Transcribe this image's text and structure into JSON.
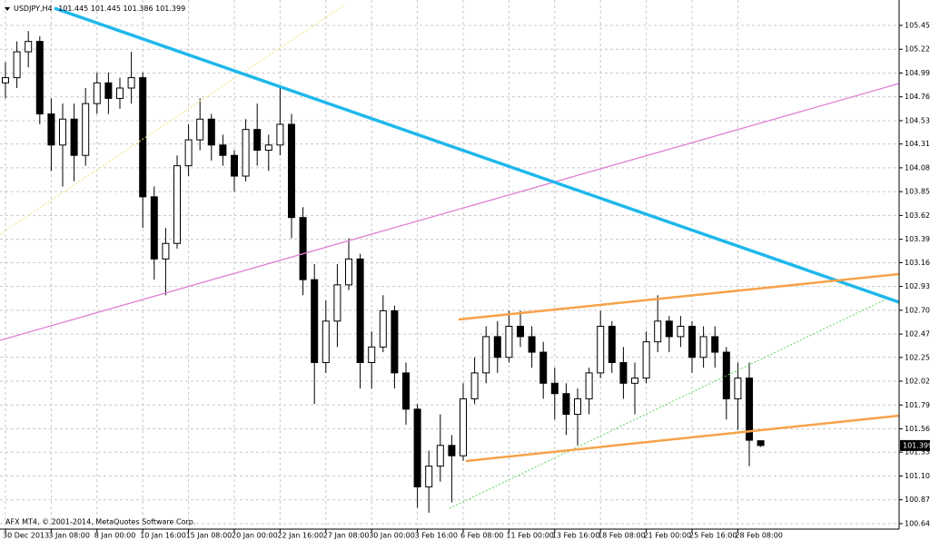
{
  "chart_data": {
    "type": "candlestick",
    "header": {
      "symbol": "USDJPY,H4",
      "ohlc": [
        101.445,
        101.445,
        101.386,
        101.399
      ]
    },
    "footer": "AFX MT4, © 2001-2014, MetaQuotes Software Corp.",
    "categories": [
      "30 Dec 2013",
      null,
      null,
      null,
      "3 Jan 08:00",
      null,
      null,
      null,
      "8 Jan 00:00",
      null,
      null,
      null,
      "10 Jan 16:00",
      null,
      null,
      null,
      "15 Jan 08:00",
      null,
      null,
      null,
      "20 Jan 00:00",
      null,
      null,
      null,
      "22 Jan 16:00",
      null,
      null,
      null,
      "27 Jan 08:00",
      null,
      null,
      null,
      "30 Jan 00:00",
      null,
      null,
      null,
      "3 Feb 16:00",
      null,
      null,
      null,
      "6 Feb 08:00",
      null,
      null,
      null,
      "11 Feb 00:00",
      null,
      null,
      null,
      "13 Feb 16:00",
      null,
      null,
      null,
      "18 Feb 08:00",
      null,
      null,
      null,
      "21 Feb 00:00",
      null,
      null,
      null,
      "25 Feb 16:00",
      null,
      null,
      null,
      "28 Feb 08:00",
      null,
      null
    ],
    "open": [
      104.9,
      104.95,
      105.2,
      105.3,
      104.6,
      104.3,
      104.55,
      104.2,
      104.7,
      104.9,
      104.75,
      104.85,
      104.95,
      103.8,
      103.2,
      103.35,
      104.1,
      104.35,
      104.55,
      104.3,
      104.2,
      104.0,
      104.45,
      104.25,
      104.3,
      104.5,
      103.6,
      103.0,
      102.2,
      102.6,
      102.95,
      103.2,
      102.2,
      102.35,
      102.7,
      102.1,
      101.75,
      101.0,
      101.2,
      101.4,
      101.3,
      101.85,
      102.1,
      102.45,
      102.25,
      102.55,
      102.45,
      102.3,
      102.0,
      101.9,
      101.7,
      101.85,
      102.1,
      102.55,
      102.2,
      102.0,
      102.05,
      102.4,
      102.6,
      102.45,
      102.55,
      102.25,
      102.45,
      102.3,
      101.85,
      102.05,
      101.445
    ],
    "high": [
      105.1,
      105.3,
      105.4,
      105.35,
      104.75,
      104.7,
      104.7,
      104.85,
      105.0,
      105.0,
      104.95,
      105.2,
      105.0,
      103.9,
      103.5,
      104.2,
      104.5,
      104.75,
      104.6,
      104.4,
      104.25,
      104.55,
      104.7,
      104.4,
      104.85,
      104.6,
      103.7,
      103.15,
      102.8,
      103.15,
      103.4,
      103.25,
      102.5,
      102.85,
      102.75,
      102.2,
      101.8,
      101.35,
      101.7,
      101.5,
      102.0,
      102.25,
      102.55,
      102.6,
      102.7,
      102.7,
      102.55,
      102.4,
      102.15,
      102.0,
      101.95,
      102.15,
      102.7,
      102.6,
      102.35,
      102.2,
      102.5,
      102.85,
      102.65,
      102.65,
      102.6,
      102.55,
      102.55,
      102.35,
      102.2,
      102.2,
      101.445
    ],
    "low": [
      104.75,
      104.85,
      105.05,
      104.5,
      104.05,
      103.9,
      103.95,
      104.1,
      104.6,
      104.6,
      104.65,
      104.7,
      103.5,
      103.0,
      102.85,
      103.3,
      104.0,
      104.25,
      104.15,
      104.1,
      103.85,
      103.95,
      104.1,
      104.05,
      104.2,
      103.4,
      102.85,
      101.8,
      102.1,
      102.35,
      102.9,
      101.95,
      101.95,
      102.3,
      101.95,
      101.6,
      100.8,
      100.75,
      101.05,
      100.85,
      101.25,
      101.8,
      102.0,
      102.1,
      102.2,
      102.35,
      102.15,
      101.85,
      101.65,
      101.5,
      101.4,
      101.7,
      102.05,
      102.1,
      101.85,
      101.7,
      102.0,
      102.3,
      102.3,
      102.35,
      102.1,
      102.15,
      102.15,
      101.65,
      101.55,
      101.2,
      101.386
    ],
    "close": [
      104.95,
      105.2,
      105.3,
      104.6,
      104.3,
      104.55,
      104.2,
      104.7,
      104.9,
      104.75,
      104.85,
      104.95,
      103.8,
      103.2,
      103.35,
      104.1,
      104.35,
      104.55,
      104.3,
      104.2,
      104.0,
      104.45,
      104.25,
      104.3,
      104.5,
      103.6,
      103.0,
      102.2,
      102.6,
      102.95,
      103.2,
      102.2,
      102.35,
      102.7,
      102.1,
      101.75,
      101.0,
      101.2,
      101.4,
      101.3,
      101.85,
      102.1,
      102.45,
      102.25,
      102.55,
      102.45,
      102.3,
      102.0,
      101.9,
      101.7,
      101.85,
      102.1,
      102.55,
      102.2,
      102.0,
      102.05,
      102.4,
      102.6,
      102.45,
      102.55,
      102.25,
      102.45,
      102.3,
      101.85,
      102.05,
      101.45,
      101.399
    ],
    "last_price": 101.399,
    "ylim": [
      100.592,
      105.7
    ],
    "yticks": [
      105.455,
      105.225,
      104.995,
      104.765,
      104.535,
      {
        "value": 104.31,
        "label": "104.310"
      },
      {
        "value": 104.08,
        "label": "104.080"
      },
      {
        "value": 103.85,
        "label": "103.850"
      },
      {
        "value": 103.62,
        "label": "103.620"
      },
      {
        "value": 103.39,
        "label": "103.390"
      },
      103.165,
      102.935,
      102.705,
      102.475,
      {
        "value": 102.25,
        "label": "102.250"
      },
      {
        "value": 102.02,
        "label": "102.020"
      },
      {
        "value": 101.79,
        "label": "101.790"
      },
      {
        "value": 101.56,
        "label": "101.560"
      },
      101.335,
      101.105,
      100.875,
      100.645
    ],
    "grid": true,
    "up_color": "#ffffff",
    "down_color": "#000000"
  }
}
